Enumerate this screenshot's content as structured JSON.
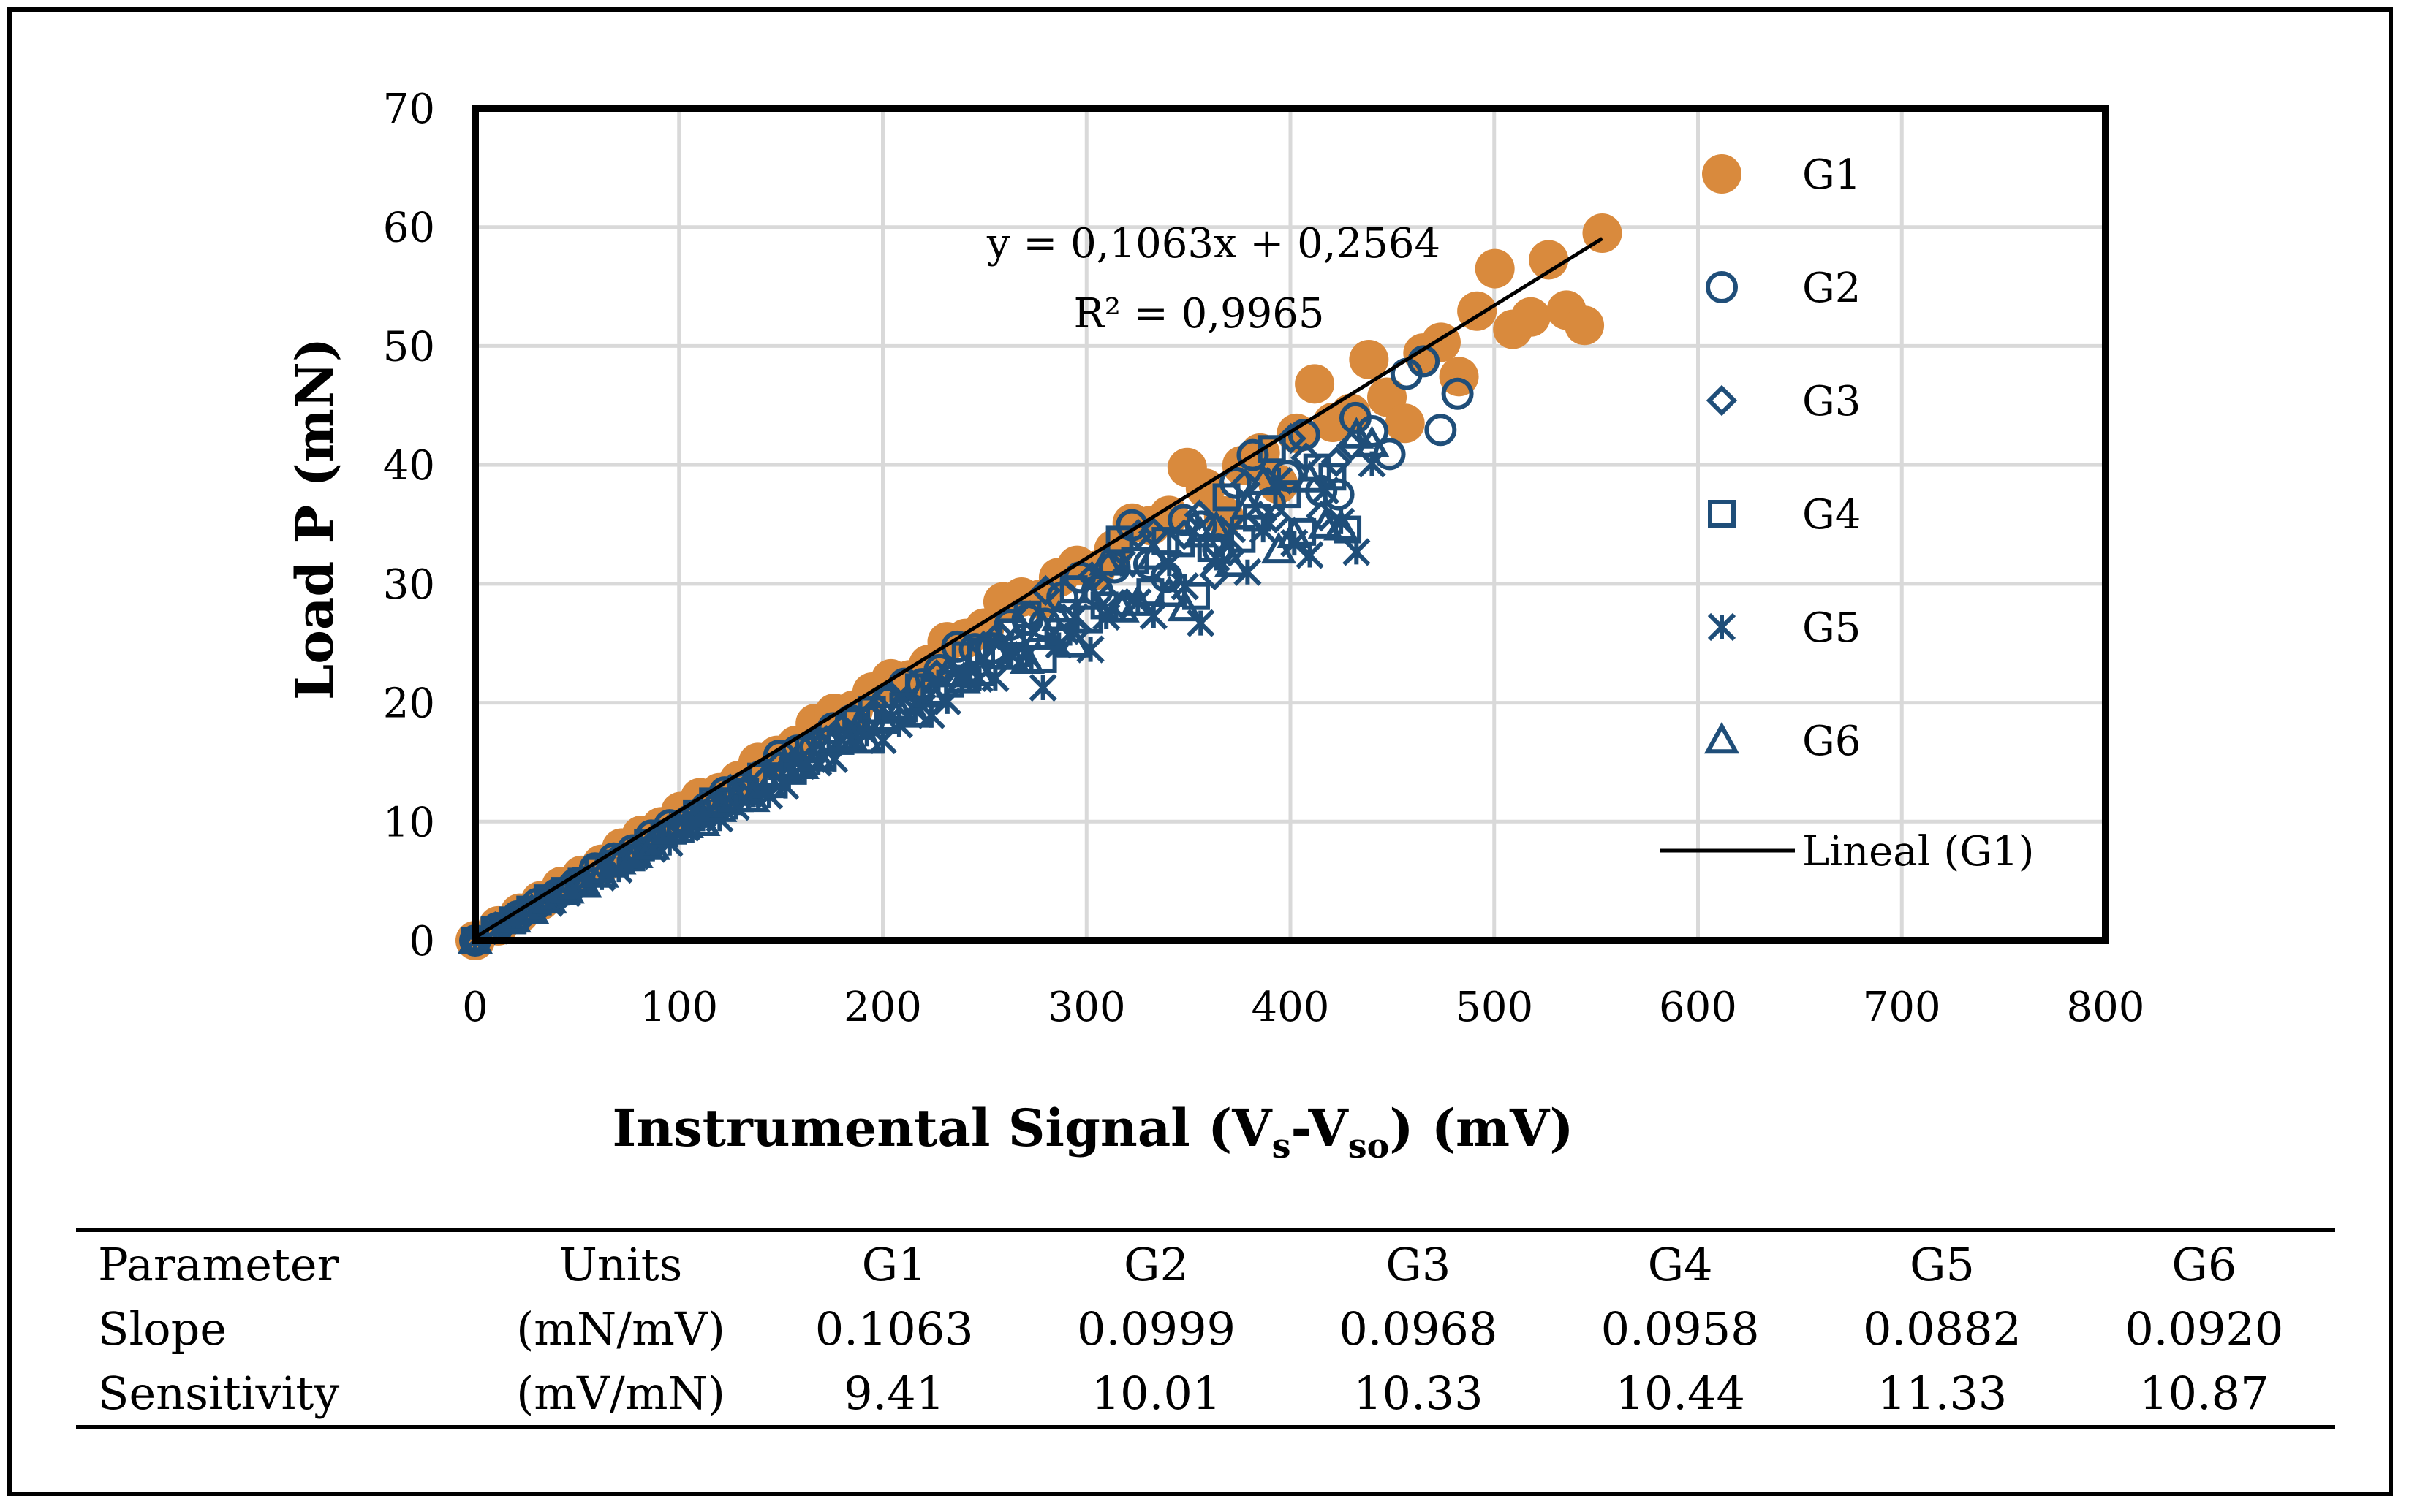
{
  "chart_data": {
    "type": "scatter",
    "title": "",
    "xlabel": "Instrumental Signal (Vs-Vso) (mV)",
    "xlabel_parts": {
      "main": "Instrumental Signal (V",
      "sub1": "s",
      "mid": "-V",
      "sub2": "so",
      "end": ") (mV)"
    },
    "ylabel": "Load P (mN)",
    "xlim": [
      0,
      800
    ],
    "ylim": [
      0,
      70
    ],
    "x_ticks": [
      "0",
      "100",
      "200",
      "300",
      "400",
      "500",
      "600",
      "700",
      "800"
    ],
    "y_ticks": [
      "0",
      "10",
      "20",
      "30",
      "40",
      "50",
      "60",
      "70"
    ],
    "grid": true,
    "legend_position": "right",
    "series": [
      {
        "name": "G1",
        "marker": "filled-circle",
        "color": "#D98A3D",
        "x_max": 553,
        "slope": 0.1063,
        "curvature": 0.15
      },
      {
        "name": "G2",
        "marker": "open-circle",
        "color": "#1F4E79",
        "x_max": 482,
        "slope": 0.0999,
        "curvature": 0.25
      },
      {
        "name": "G3",
        "marker": "open-diamond",
        "color": "#1F4E79",
        "x_max": 430,
        "slope": 0.0968,
        "curvature": 0.28
      },
      {
        "name": "G4",
        "marker": "open-square",
        "color": "#1F4E79",
        "x_max": 428,
        "slope": 0.0958,
        "curvature": 0.3
      },
      {
        "name": "G5",
        "marker": "asterisk",
        "color": "#1F4E79",
        "x_max": 440,
        "slope": 0.0882,
        "curvature": 0.2
      },
      {
        "name": "G6",
        "marker": "open-triangle",
        "color": "#1F4E79",
        "x_max": 440,
        "slope": 0.092,
        "curvature": 0.22
      }
    ],
    "trendline": {
      "name": "Lineal (G1)",
      "slope": 0.1063,
      "intercept": 0.2564,
      "x_range": [
        0,
        553
      ]
    },
    "annotation_equation": "y = 0,1063x + 0,2564",
    "annotation_r2": "R² = 0,9965"
  },
  "table": {
    "headers": [
      "Parameter",
      "Units",
      "G1",
      "G2",
      "G3",
      "G4",
      "G5",
      "G6"
    ],
    "rows": [
      [
        "Slope",
        "(mN/mV)",
        "0.1063",
        "0.0999",
        "0.0968",
        "0.0958",
        "0.0882",
        "0.0920"
      ],
      [
        "Sensitivity",
        "(mV/mN)",
        "9.41",
        "10.01",
        "10.33",
        "10.44",
        "11.33",
        "10.87"
      ]
    ]
  }
}
